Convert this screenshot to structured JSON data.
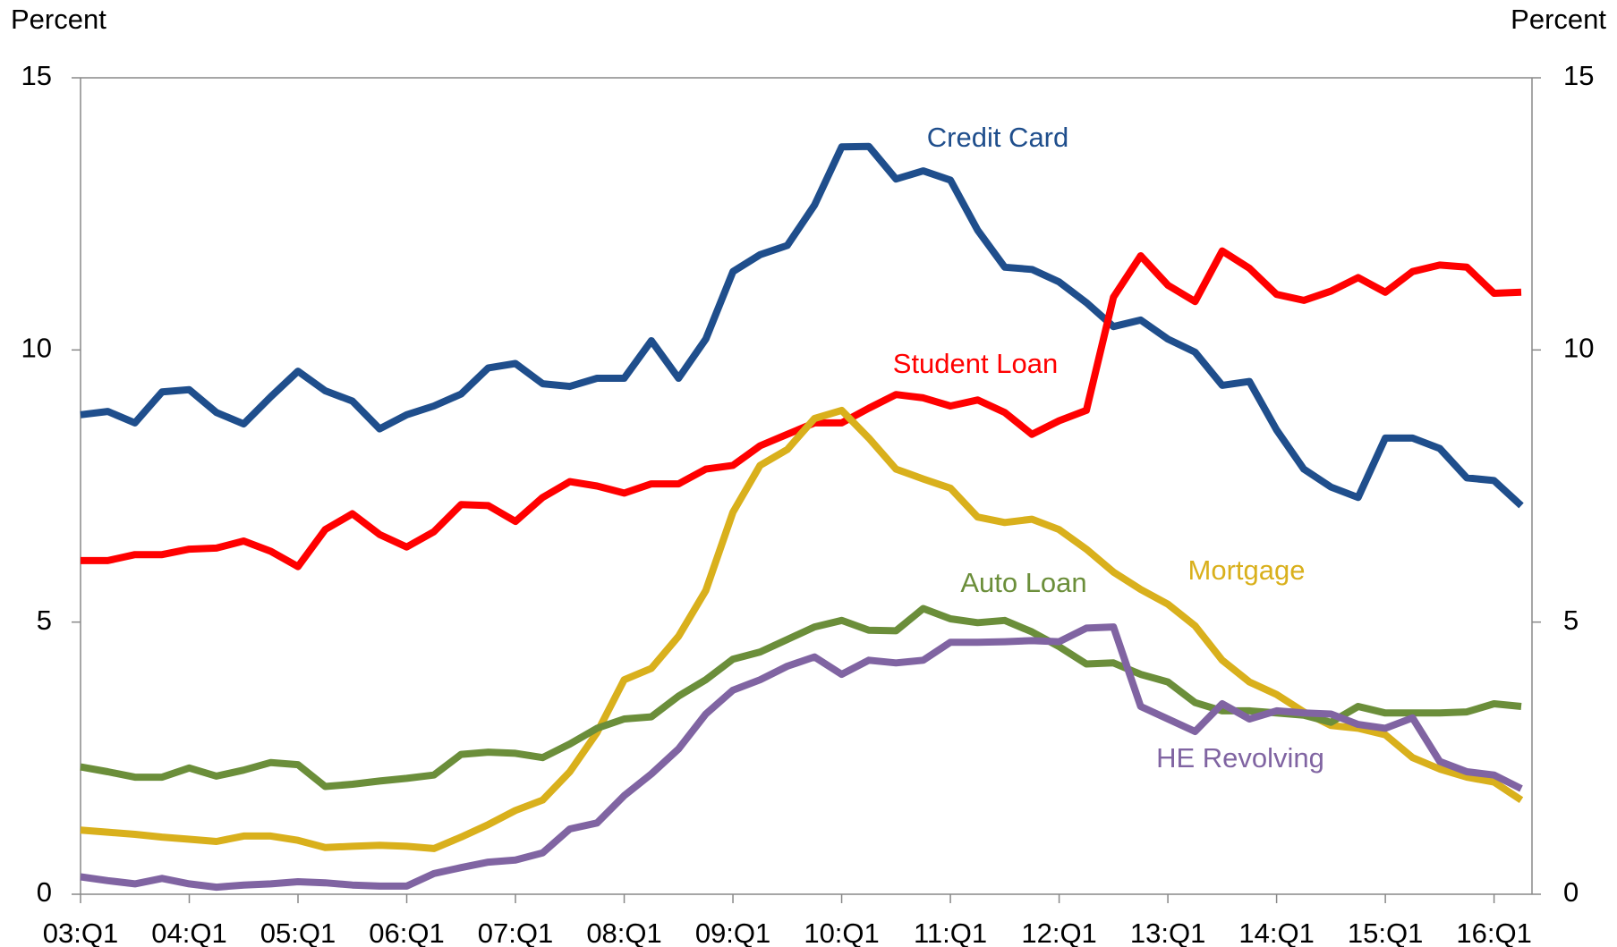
{
  "chart_data": {
    "type": "line",
    "y_label": "Percent",
    "y2_label": "Percent",
    "categories": [
      "03:Q1",
      null,
      null,
      null,
      "04:Q1",
      null,
      null,
      null,
      "05:Q1",
      null,
      null,
      null,
      "06:Q1",
      null,
      null,
      null,
      "07:Q1",
      null,
      null,
      null,
      "08:Q1",
      null,
      null,
      null,
      "09:Q1",
      null,
      null,
      null,
      "10:Q1",
      null,
      null,
      null,
      "11:Q1",
      null,
      null,
      null,
      "12:Q1",
      null,
      null,
      null,
      "13:Q1",
      null,
      null,
      null,
      "14:Q1",
      null,
      null,
      null,
      "15:Q1",
      null,
      null,
      null,
      "16:Q1",
      null
    ],
    "ylim": [
      0,
      15
    ],
    "yticks": [
      0,
      5,
      10,
      15
    ],
    "y2lim": [
      0,
      15
    ],
    "y2ticks": [
      0,
      5,
      10,
      15
    ],
    "series": [
      {
        "name": "Credit Card",
        "color": "#1f4e8c",
        "values": [
          8.81,
          8.87,
          8.66,
          9.23,
          9.27,
          8.85,
          8.64,
          9.14,
          9.61,
          9.25,
          9.06,
          8.55,
          8.81,
          8.97,
          9.19,
          9.67,
          9.75,
          9.38,
          9.33,
          9.48,
          9.48,
          10.17,
          9.48,
          10.2,
          11.44,
          11.75,
          11.92,
          12.66,
          13.73,
          13.74,
          13.14,
          13.29,
          13.12,
          12.2,
          11.52,
          11.48,
          11.25,
          10.87,
          10.43,
          10.55,
          10.2,
          9.96,
          9.35,
          9.42,
          8.53,
          7.81,
          7.48,
          7.29,
          8.38,
          8.38,
          8.19,
          7.65,
          7.6,
          7.14
        ]
      },
      {
        "name": "Student Loan",
        "color": "#ff0000",
        "values": [
          6.13,
          6.13,
          6.24,
          6.24,
          6.34,
          6.36,
          6.49,
          6.3,
          6.02,
          6.7,
          6.99,
          6.61,
          6.38,
          6.66,
          7.16,
          7.14,
          6.85,
          7.29,
          7.58,
          7.5,
          7.37,
          7.54,
          7.54,
          7.81,
          7.88,
          8.24,
          8.45,
          8.66,
          8.66,
          8.93,
          9.18,
          9.12,
          8.97,
          9.08,
          8.85,
          8.45,
          8.7,
          8.89,
          10.97,
          11.73,
          11.19,
          10.89,
          11.82,
          11.5,
          11.02,
          10.91,
          11.08,
          11.33,
          11.06,
          11.44,
          11.56,
          11.52,
          11.04,
          11.06
        ]
      },
      {
        "name": "Mortgage",
        "color": "#d9b01c",
        "values": [
          1.18,
          1.14,
          1.1,
          1.05,
          1.01,
          0.97,
          1.07,
          1.07,
          0.99,
          0.86,
          0.88,
          0.9,
          0.88,
          0.84,
          1.05,
          1.28,
          1.54,
          1.73,
          2.25,
          2.97,
          3.94,
          4.15,
          4.74,
          5.58,
          7.02,
          7.88,
          8.17,
          8.74,
          8.89,
          8.38,
          7.81,
          7.63,
          7.46,
          6.93,
          6.83,
          6.89,
          6.7,
          6.34,
          5.92,
          5.6,
          5.33,
          4.93,
          4.3,
          3.9,
          3.67,
          3.35,
          3.1,
          3.05,
          2.93,
          2.51,
          2.3,
          2.15,
          2.06,
          1.73
        ]
      },
      {
        "name": "Auto Loan",
        "color": "#6b8e3a",
        "values": [
          2.34,
          2.25,
          2.15,
          2.15,
          2.32,
          2.17,
          2.28,
          2.42,
          2.38,
          1.98,
          2.02,
          2.08,
          2.13,
          2.19,
          2.57,
          2.61,
          2.59,
          2.51,
          2.76,
          3.05,
          3.22,
          3.26,
          3.64,
          3.94,
          4.32,
          4.45,
          4.68,
          4.91,
          5.03,
          4.85,
          4.84,
          5.25,
          5.06,
          4.99,
          5.03,
          4.82,
          4.55,
          4.23,
          4.25,
          4.04,
          3.9,
          3.52,
          3.37,
          3.37,
          3.33,
          3.29,
          3.16,
          3.45,
          3.33,
          3.33,
          3.33,
          3.35,
          3.5,
          3.45
        ]
      },
      {
        "name": "HE Revolving",
        "color": "#8064a2",
        "values": [
          0.32,
          0.25,
          0.19,
          0.29,
          0.19,
          0.13,
          0.17,
          0.19,
          0.23,
          0.21,
          0.17,
          0.15,
          0.15,
          0.38,
          0.49,
          0.59,
          0.63,
          0.76,
          1.2,
          1.31,
          1.81,
          2.21,
          2.67,
          3.31,
          3.75,
          3.94,
          4.19,
          4.36,
          4.04,
          4.3,
          4.25,
          4.3,
          4.63,
          4.63,
          4.64,
          4.66,
          4.64,
          4.89,
          4.91,
          3.45,
          3.22,
          2.99,
          3.5,
          3.22,
          3.37,
          3.33,
          3.31,
          3.12,
          3.05,
          3.24,
          2.44,
          2.25,
          2.19,
          1.94
        ]
      }
    ]
  }
}
